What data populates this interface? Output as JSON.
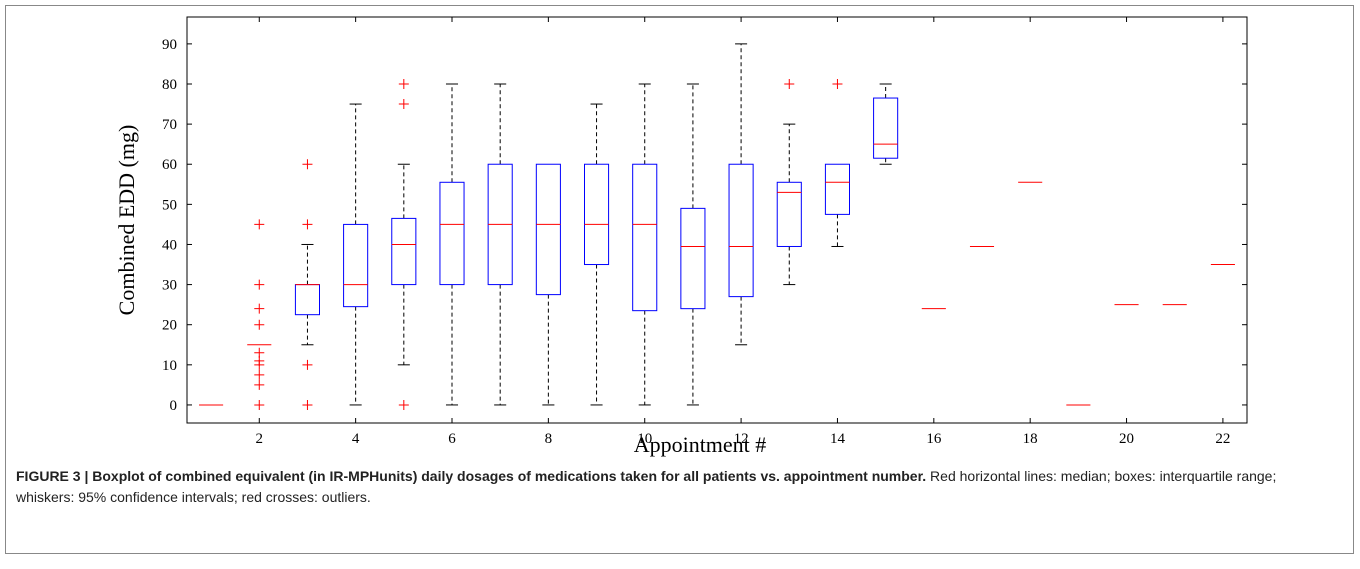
{
  "chart_data": {
    "type": "boxplot",
    "ylabel": "Combined EDD (mg)",
    "xlabel": "Appointment #",
    "x": [
      1,
      2,
      3,
      4,
      5,
      6,
      7,
      8,
      9,
      10,
      11,
      12,
      13,
      14,
      15,
      16,
      17,
      18,
      19,
      20,
      21,
      22
    ],
    "q1": [
      0,
      15,
      22.5,
      24.5,
      30,
      30,
      30,
      27.5,
      35,
      23.5,
      24,
      27,
      39.5,
      47.5,
      61.5,
      24,
      39.5,
      55.5,
      0,
      25,
      25,
      35
    ],
    "median": [
      0,
      15,
      30,
      30,
      40,
      45,
      45,
      45,
      45,
      45,
      39.5,
      39.5,
      53,
      55.5,
      65,
      24,
      39.5,
      55.5,
      0,
      25,
      25,
      35
    ],
    "q3": [
      0,
      15,
      30,
      45,
      46.5,
      55.5,
      60,
      60,
      60,
      60,
      49,
      60,
      55.5,
      60,
      76.5,
      24,
      39.5,
      55.5,
      0,
      25,
      25,
      35
    ],
    "whisker_low": [
      0,
      15,
      15,
      0,
      10,
      0,
      0,
      0,
      0,
      0,
      0,
      15,
      30,
      39.5,
      60,
      24,
      39.5,
      55.5,
      0,
      25,
      25,
      35
    ],
    "whisker_high": [
      0,
      15,
      40,
      75,
      60,
      80,
      80,
      60,
      75,
      80,
      80,
      90,
      70,
      60,
      80,
      24,
      39.5,
      55.5,
      0,
      25,
      25,
      35
    ],
    "outliers": [
      [],
      [
        45,
        30,
        24,
        20,
        13,
        11,
        10,
        7.5,
        5,
        0
      ],
      [
        60,
        45,
        10,
        0
      ],
      [],
      [
        80,
        75,
        0
      ],
      [],
      [],
      [],
      [],
      [],
      [],
      [],
      [
        80
      ],
      [
        80
      ],
      [],
      [],
      [],
      [],
      [],
      [],
      [],
      []
    ],
    "box_color": "#0000ff",
    "median_color": "#ff0000",
    "whisker_color": "#000000",
    "outlier_color": "#ff0000",
    "xlim": [
      0.5,
      22.5
    ],
    "ylim": [
      -4.5,
      96.7
    ],
    "xticks": [
      2,
      4,
      6,
      8,
      10,
      12,
      14,
      16,
      18,
      20,
      22
    ],
    "yticks": [
      0,
      10,
      20,
      30,
      40,
      50,
      60,
      70,
      80,
      90
    ]
  },
  "caption": {
    "label": "FIGURE 3 | Boxplot of combined equivalent (in IR-MPHunits) daily dosages of medications taken for all patients vs. appointment number.",
    "text": "Red horizontal lines: median; boxes: interquartile range; whiskers: 95% confidence intervals; red crosses: outliers."
  }
}
